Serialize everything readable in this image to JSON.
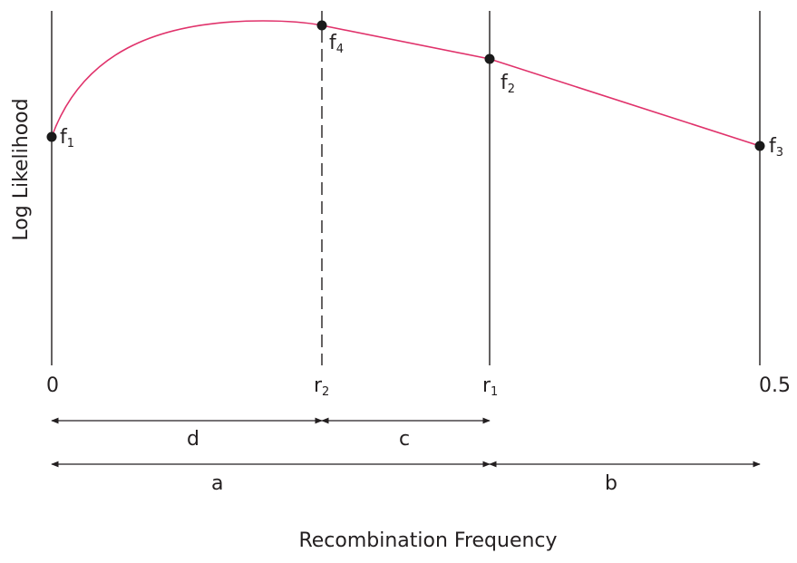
{
  "axes": {
    "y_title": "Log Likelihood",
    "x_title": "Recombination Frequency",
    "ticks": {
      "zero": "0",
      "r2_base": "r",
      "r2_sub": "2",
      "r1_base": "r",
      "r1_sub": "1",
      "half": "0.5"
    }
  },
  "points": {
    "f1": {
      "base": "f",
      "sub": "1"
    },
    "f2": {
      "base": "f",
      "sub": "2"
    },
    "f3": {
      "base": "f",
      "sub": "3"
    },
    "f4": {
      "base": "f",
      "sub": "4"
    }
  },
  "intervals": {
    "d": "d",
    "c": "c",
    "a": "a",
    "b": "b"
  },
  "colors": {
    "curve": "#e0326b",
    "ink": "#231f20"
  }
}
